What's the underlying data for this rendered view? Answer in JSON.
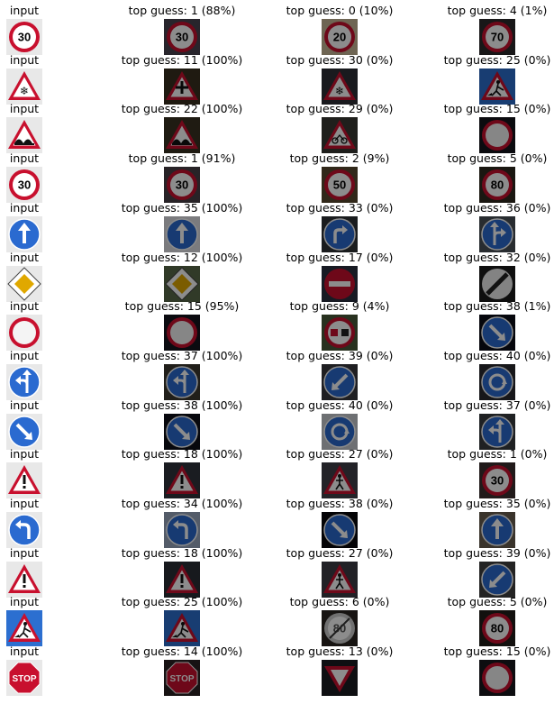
{
  "input_label": "input",
  "rows": [
    {
      "input_sign": "speed-limit-30",
      "guesses": [
        {
          "label": "top guess: 1 (88%)",
          "icon": "speed-limit-30",
          "bg": "#4a4450"
        },
        {
          "label": "top guess: 0 (10%)",
          "icon": "speed-limit-20",
          "bg": "#c8b898"
        },
        {
          "label": "top guess: 4 (1%)",
          "icon": "speed-limit-70",
          "bg": "#2c2a2c"
        }
      ]
    },
    {
      "input_sign": "beware-ice-snow",
      "guesses": [
        {
          "label": "top guess: 11 (100%)",
          "icon": "right-of-way",
          "bg": "#3a3020"
        },
        {
          "label": "top guess: 30 (0%)",
          "icon": "beware-ice-snow",
          "bg": "#2e3038"
        },
        {
          "label": "top guess: 25 (0%)",
          "icon": "road-work",
          "bg": "#4a4a4c"
        }
      ]
    },
    {
      "input_sign": "bumpy-road",
      "guesses": [
        {
          "label": "top guess: 22 (100%)",
          "icon": "bumpy-road",
          "bg": "#3a3222"
        },
        {
          "label": "top guess: 29 (0%)",
          "icon": "bicycles-crossing",
          "bg": "#3a3a34"
        },
        {
          "label": "top guess: 15 (0%)",
          "icon": "no-vehicles",
          "bg": "#14141c"
        }
      ]
    },
    {
      "input_sign": "speed-limit-30",
      "guesses": [
        {
          "label": "top guess: 1 (91%)",
          "icon": "speed-limit-30",
          "bg": "#4a4048"
        },
        {
          "label": "top guess: 2 (9%)",
          "icon": "speed-limit-50",
          "bg": "#5a4a30"
        },
        {
          "label": "top guess: 5 (0%)",
          "icon": "speed-limit-80",
          "bg": "#302a20"
        }
      ]
    },
    {
      "input_sign": "ahead-only",
      "guesses": [
        {
          "label": "top guess: 35 (100%)",
          "icon": "ahead-only",
          "bg": "#e0e0e6"
        },
        {
          "label": "top guess: 33 (0%)",
          "icon": "turn-right-ahead",
          "bg": "#303438"
        },
        {
          "label": "top guess: 36 (0%)",
          "icon": "go-straight-or-right",
          "bg": "#4a5058"
        }
      ]
    },
    {
      "input_sign": "priority-road",
      "guesses": [
        {
          "label": "top guess: 12 (100%)",
          "icon": "priority-road",
          "bg": "#5a6a4a"
        },
        {
          "label": "top guess: 17 (0%)",
          "icon": "no-entry",
          "bg": "#2a3040"
        },
        {
          "label": "top guess: 32 (0%)",
          "icon": "end-of-all-limits",
          "bg": "#1c1c1c"
        }
      ]
    },
    {
      "input_sign": "no-vehicles",
      "guesses": [
        {
          "label": "top guess: 15 (95%)",
          "icon": "no-vehicles",
          "bg": "#14141e"
        },
        {
          "label": "top guess: 9 (4%)",
          "icon": "no-passing",
          "bg": "#4a5a3a"
        },
        {
          "label": "top guess: 38 (1%)",
          "icon": "keep-right",
          "bg": "#0c0e18"
        }
      ]
    },
    {
      "input_sign": "go-straight-or-left",
      "guesses": [
        {
          "label": "top guess: 37 (100%)",
          "icon": "go-straight-or-left",
          "bg": "#3c3a30"
        },
        {
          "label": "top guess: 39 (0%)",
          "icon": "keep-left",
          "bg": "#3a3a3e"
        },
        {
          "label": "top guess: 40 (0%)",
          "icon": "roundabout-mandatory",
          "bg": "#2a2a30"
        }
      ]
    },
    {
      "input_sign": "keep-right",
      "guesses": [
        {
          "label": "top guess: 38 (100%)",
          "icon": "keep-right",
          "bg": "#0e1018"
        },
        {
          "label": "top guess: 40 (0%)",
          "icon": "roundabout-mandatory",
          "bg": "#c8ccd2"
        },
        {
          "label": "top guess: 37 (0%)",
          "icon": "go-straight-or-left",
          "bg": "#3a3c40"
        }
      ]
    },
    {
      "input_sign": "general-caution",
      "guesses": [
        {
          "label": "top guess: 18 (100%)",
          "icon": "general-caution",
          "bg": "#30343c"
        },
        {
          "label": "top guess: 27 (0%)",
          "icon": "pedestrians",
          "bg": "#40404a"
        },
        {
          "label": "top guess: 1 (0%)",
          "icon": "speed-limit-30",
          "bg": "#3c3030"
        }
      ]
    },
    {
      "input_sign": "turn-left-ahead",
      "guesses": [
        {
          "label": "top guess: 34 (100%)",
          "icon": "turn-left-ahead",
          "bg": "#9aa8c0"
        },
        {
          "label": "top guess: 38 (0%)",
          "icon": "keep-right",
          "bg": "#08080c"
        },
        {
          "label": "top guess: 35 (0%)",
          "icon": "ahead-only",
          "bg": "#6a6050"
        }
      ]
    },
    {
      "input_sign": "general-caution",
      "guesses": [
        {
          "label": "top guess: 18 (100%)",
          "icon": "general-caution",
          "bg": "#2a2e36"
        },
        {
          "label": "top guess: 27 (0%)",
          "icon": "pedestrians",
          "bg": "#3c3c46"
        },
        {
          "label": "top guess: 39 (0%)",
          "icon": "keep-left",
          "bg": "#404040"
        }
      ]
    },
    {
      "input_sign": "road-work",
      "guesses": [
        {
          "label": "top guess: 25 (100%)",
          "icon": "road-work",
          "bg": "#3a3a30"
        },
        {
          "label": "top guess: 6 (0%)",
          "icon": "end-of-speed-limit-80",
          "bg": "#2a2622"
        },
        {
          "label": "top guess: 5 (0%)",
          "icon": "speed-limit-80",
          "bg": "#221e1a"
        }
      ]
    },
    {
      "input_sign": "stop",
      "guesses": [
        {
          "label": "top guess: 14 (100%)",
          "icon": "stop",
          "bg": "#2a2224"
        },
        {
          "label": "top guess: 13 (0%)",
          "icon": "yield",
          "bg": "#1a1c22"
        },
        {
          "label": "top guess: 15 (0%)",
          "icon": "no-vehicles",
          "bg": "#18181e"
        }
      ]
    }
  ]
}
